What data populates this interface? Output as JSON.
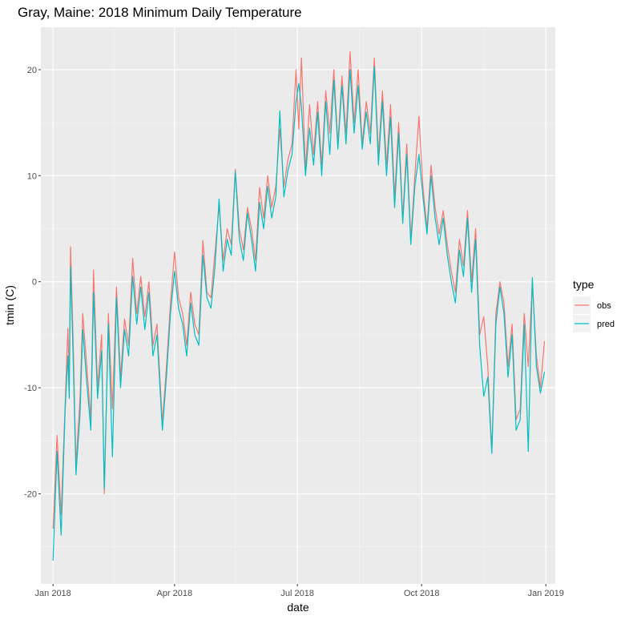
{
  "chart_data": {
    "type": "line",
    "title": "Gray, Maine: 2018 Minimum Daily Temperature",
    "xlabel": "date",
    "ylabel": "tmin (C)",
    "x_type": "date",
    "xlim": [
      "2017-12-23",
      "2019-01-08"
    ],
    "ylim": [
      -28.5,
      24
    ],
    "x_ticks": [
      {
        "date": "2018-01-01",
        "label": "Jan 2018"
      },
      {
        "date": "2018-04-01",
        "label": "Apr 2018"
      },
      {
        "date": "2018-07-01",
        "label": "Jul 2018"
      },
      {
        "date": "2018-10-01",
        "label": "Oct 2018"
      },
      {
        "date": "2019-01-01",
        "label": "Jan 2019"
      }
    ],
    "x_minor_ticks": [
      "2018-02-15",
      "2018-05-16",
      "2018-08-16",
      "2018-11-16"
    ],
    "y_ticks": [
      -20,
      -10,
      0,
      10,
      20
    ],
    "y_minor_ticks": [
      -25,
      -15,
      -5,
      5,
      15
    ],
    "grid": true,
    "legend": {
      "title": "type",
      "position": "right"
    },
    "series": [
      {
        "name": "obs",
        "color": "#F8766D",
        "points": [
          [
            "2018-01-01",
            -23.3
          ],
          [
            "2018-01-04",
            -14.5
          ],
          [
            "2018-01-07",
            -22.0
          ],
          [
            "2018-01-10",
            -11.5
          ],
          [
            "2018-01-12",
            -4.4
          ],
          [
            "2018-01-13",
            -9.0
          ],
          [
            "2018-01-14",
            3.3
          ],
          [
            "2018-01-16",
            -6.0
          ],
          [
            "2018-01-18",
            -17.2
          ],
          [
            "2018-01-21",
            -11.0
          ],
          [
            "2018-01-23",
            -3.0
          ],
          [
            "2018-01-26",
            -8.0
          ],
          [
            "2018-01-29",
            -13.0
          ],
          [
            "2018-01-31",
            1.1
          ],
          [
            "2018-02-03",
            -10.0
          ],
          [
            "2018-02-06",
            -5.0
          ],
          [
            "2018-02-08",
            -20.0
          ],
          [
            "2018-02-11",
            -3.0
          ],
          [
            "2018-02-14",
            -12.0
          ],
          [
            "2018-02-17",
            -0.5
          ],
          [
            "2018-02-20",
            -9.0
          ],
          [
            "2018-02-23",
            -3.5
          ],
          [
            "2018-02-26",
            -6.0
          ],
          [
            "2018-03-01",
            2.2
          ],
          [
            "2018-03-04",
            -3.0
          ],
          [
            "2018-03-07",
            0.5
          ],
          [
            "2018-03-10",
            -3.3
          ],
          [
            "2018-03-13",
            0.0
          ],
          [
            "2018-03-16",
            -6.0
          ],
          [
            "2018-03-19",
            -4.0
          ],
          [
            "2018-03-23",
            -13.3
          ],
          [
            "2018-03-26",
            -8.0
          ],
          [
            "2018-03-29",
            -2.0
          ],
          [
            "2018-04-01",
            2.8
          ],
          [
            "2018-04-04",
            -1.5
          ],
          [
            "2018-04-07",
            -3.0
          ],
          [
            "2018-04-10",
            -6.0
          ],
          [
            "2018-04-13",
            -1.0
          ],
          [
            "2018-04-16",
            -4.0
          ],
          [
            "2018-04-19",
            -5.0
          ],
          [
            "2018-04-22",
            3.9
          ],
          [
            "2018-04-25",
            -1.0
          ],
          [
            "2018-04-28",
            -1.5
          ],
          [
            "2018-05-01",
            2.8
          ],
          [
            "2018-05-04",
            7.2
          ],
          [
            "2018-05-07",
            2.0
          ],
          [
            "2018-05-10",
            5.0
          ],
          [
            "2018-05-13",
            3.5
          ],
          [
            "2018-05-16",
            10.6
          ],
          [
            "2018-05-19",
            5.0
          ],
          [
            "2018-05-22",
            3.0
          ],
          [
            "2018-05-25",
            7.0
          ],
          [
            "2018-05-28",
            5.0
          ],
          [
            "2018-05-31",
            2.0
          ],
          [
            "2018-06-03",
            8.9
          ],
          [
            "2018-06-06",
            6.0
          ],
          [
            "2018-06-09",
            10.0
          ],
          [
            "2018-06-12",
            7.0
          ],
          [
            "2018-06-15",
            9.0
          ],
          [
            "2018-06-18",
            14.4
          ],
          [
            "2018-06-21",
            9.0
          ],
          [
            "2018-06-24",
            11.5
          ],
          [
            "2018-06-27",
            13.0
          ],
          [
            "2018-06-30",
            20.0
          ],
          [
            "2018-07-02",
            14.4
          ],
          [
            "2018-07-04",
            21.1
          ],
          [
            "2018-07-07",
            10.5
          ],
          [
            "2018-07-10",
            16.7
          ],
          [
            "2018-07-13",
            12.0
          ],
          [
            "2018-07-16",
            17.0
          ],
          [
            "2018-07-19",
            11.0
          ],
          [
            "2018-07-22",
            18.0
          ],
          [
            "2018-07-25",
            14.0
          ],
          [
            "2018-07-28",
            20.0
          ],
          [
            "2018-07-31",
            13.0
          ],
          [
            "2018-08-03",
            19.4
          ],
          [
            "2018-08-06",
            14.0
          ],
          [
            "2018-08-09",
            21.7
          ],
          [
            "2018-08-12",
            15.0
          ],
          [
            "2018-08-15",
            20.0
          ],
          [
            "2018-08-18",
            13.0
          ],
          [
            "2018-08-21",
            17.0
          ],
          [
            "2018-08-24",
            14.0
          ],
          [
            "2018-08-27",
            21.1
          ],
          [
            "2018-08-30",
            12.0
          ],
          [
            "2018-09-02",
            18.0
          ],
          [
            "2018-09-05",
            11.0
          ],
          [
            "2018-09-08",
            16.7
          ],
          [
            "2018-09-11",
            8.0
          ],
          [
            "2018-09-14",
            15.0
          ],
          [
            "2018-09-17",
            6.0
          ],
          [
            "2018-09-20",
            13.0
          ],
          [
            "2018-09-23",
            4.0
          ],
          [
            "2018-09-26",
            10.0
          ],
          [
            "2018-09-29",
            15.6
          ],
          [
            "2018-10-02",
            8.9
          ],
          [
            "2018-10-05",
            5.0
          ],
          [
            "2018-10-08",
            11.0
          ],
          [
            "2018-10-11",
            7.0
          ],
          [
            "2018-10-14",
            4.5
          ],
          [
            "2018-10-17",
            6.7
          ],
          [
            "2018-10-20",
            3.5
          ],
          [
            "2018-10-23",
            1.0
          ],
          [
            "2018-10-26",
            -1.0
          ],
          [
            "2018-10-29",
            4.0
          ],
          [
            "2018-11-01",
            1.5
          ],
          [
            "2018-11-04",
            6.7
          ],
          [
            "2018-11-07",
            0.0
          ],
          [
            "2018-11-10",
            5.0
          ],
          [
            "2018-11-13",
            -5.0
          ],
          [
            "2018-11-16",
            -3.3
          ],
          [
            "2018-11-19",
            -8.0
          ],
          [
            "2018-11-22",
            -16.0
          ],
          [
            "2018-11-25",
            -3.0
          ],
          [
            "2018-11-28",
            0.0
          ],
          [
            "2018-12-01",
            -2.0
          ],
          [
            "2018-12-04",
            -8.0
          ],
          [
            "2018-12-07",
            -4.0
          ],
          [
            "2018-12-10",
            -13.0
          ],
          [
            "2018-12-13",
            -12.0
          ],
          [
            "2018-12-16",
            -3.0
          ],
          [
            "2018-12-19",
            -8.0
          ],
          [
            "2018-12-22",
            0.0
          ],
          [
            "2018-12-25",
            -7.0
          ],
          [
            "2018-12-28",
            -10.0
          ],
          [
            "2018-12-31",
            -5.6
          ]
        ]
      },
      {
        "name": "pred",
        "color": "#00BFC4",
        "points": [
          [
            "2018-01-01",
            -26.3
          ],
          [
            "2018-01-04",
            -16.0
          ],
          [
            "2018-01-07",
            -23.9
          ],
          [
            "2018-01-10",
            -12.0
          ],
          [
            "2018-01-12",
            -7.0
          ],
          [
            "2018-01-13",
            -11.0
          ],
          [
            "2018-01-14",
            1.4
          ],
          [
            "2018-01-16",
            -7.5
          ],
          [
            "2018-01-18",
            -18.2
          ],
          [
            "2018-01-21",
            -12.5
          ],
          [
            "2018-01-23",
            -4.5
          ],
          [
            "2018-01-26",
            -9.5
          ],
          [
            "2018-01-29",
            -14.0
          ],
          [
            "2018-01-31",
            -1.0
          ],
          [
            "2018-02-03",
            -11.0
          ],
          [
            "2018-02-06",
            -6.5
          ],
          [
            "2018-02-08",
            -19.5
          ],
          [
            "2018-02-11",
            -4.0
          ],
          [
            "2018-02-14",
            -16.5
          ],
          [
            "2018-02-17",
            -1.5
          ],
          [
            "2018-02-20",
            -10.0
          ],
          [
            "2018-02-23",
            -4.5
          ],
          [
            "2018-02-26",
            -7.0
          ],
          [
            "2018-03-01",
            0.5
          ],
          [
            "2018-03-04",
            -4.0
          ],
          [
            "2018-03-07",
            -0.5
          ],
          [
            "2018-03-10",
            -4.5
          ],
          [
            "2018-03-13",
            -1.0
          ],
          [
            "2018-03-16",
            -7.0
          ],
          [
            "2018-03-19",
            -5.0
          ],
          [
            "2018-03-23",
            -14.0
          ],
          [
            "2018-03-26",
            -9.0
          ],
          [
            "2018-03-29",
            -3.0
          ],
          [
            "2018-04-01",
            1.0
          ],
          [
            "2018-04-04",
            -2.5
          ],
          [
            "2018-04-07",
            -4.0
          ],
          [
            "2018-04-10",
            -7.0
          ],
          [
            "2018-04-13",
            -2.0
          ],
          [
            "2018-04-16",
            -5.0
          ],
          [
            "2018-04-19",
            -6.0
          ],
          [
            "2018-04-22",
            2.5
          ],
          [
            "2018-04-25",
            -1.5
          ],
          [
            "2018-04-28",
            -2.5
          ],
          [
            "2018-05-01",
            1.5
          ],
          [
            "2018-05-04",
            7.8
          ],
          [
            "2018-05-07",
            1.0
          ],
          [
            "2018-05-10",
            4.0
          ],
          [
            "2018-05-13",
            2.5
          ],
          [
            "2018-05-16",
            10.4
          ],
          [
            "2018-05-19",
            4.0
          ],
          [
            "2018-05-22",
            2.0
          ],
          [
            "2018-05-25",
            6.5
          ],
          [
            "2018-05-28",
            4.0
          ],
          [
            "2018-05-31",
            1.0
          ],
          [
            "2018-06-03",
            7.5
          ],
          [
            "2018-06-06",
            5.0
          ],
          [
            "2018-06-09",
            9.0
          ],
          [
            "2018-06-12",
            6.0
          ],
          [
            "2018-06-15",
            8.0
          ],
          [
            "2018-06-18",
            16.1
          ],
          [
            "2018-06-21",
            8.0
          ],
          [
            "2018-06-24",
            10.5
          ],
          [
            "2018-06-27",
            12.0
          ],
          [
            "2018-06-30",
            17.0
          ],
          [
            "2018-07-02",
            18.7
          ],
          [
            "2018-07-04",
            16.5
          ],
          [
            "2018-07-07",
            10.0
          ],
          [
            "2018-07-10",
            14.5
          ],
          [
            "2018-07-13",
            11.0
          ],
          [
            "2018-07-16",
            16.0
          ],
          [
            "2018-07-19",
            10.0
          ],
          [
            "2018-07-22",
            17.0
          ],
          [
            "2018-07-25",
            12.0
          ],
          [
            "2018-07-28",
            19.0
          ],
          [
            "2018-07-31",
            12.5
          ],
          [
            "2018-08-03",
            18.5
          ],
          [
            "2018-08-06",
            13.0
          ],
          [
            "2018-08-09",
            20.0
          ],
          [
            "2018-08-12",
            14.0
          ],
          [
            "2018-08-15",
            18.5
          ],
          [
            "2018-08-18",
            12.5
          ],
          [
            "2018-08-21",
            16.0
          ],
          [
            "2018-08-24",
            13.0
          ],
          [
            "2018-08-27",
            20.3
          ],
          [
            "2018-08-30",
            11.0
          ],
          [
            "2018-09-02",
            17.0
          ],
          [
            "2018-09-05",
            10.0
          ],
          [
            "2018-09-08",
            15.5
          ],
          [
            "2018-09-11",
            7.0
          ],
          [
            "2018-09-14",
            14.0
          ],
          [
            "2018-09-17",
            5.5
          ],
          [
            "2018-09-20",
            12.0
          ],
          [
            "2018-09-23",
            3.5
          ],
          [
            "2018-09-26",
            9.0
          ],
          [
            "2018-09-29",
            12.0
          ],
          [
            "2018-10-02",
            8.0
          ],
          [
            "2018-10-05",
            4.5
          ],
          [
            "2018-10-08",
            10.0
          ],
          [
            "2018-10-11",
            6.0
          ],
          [
            "2018-10-14",
            3.5
          ],
          [
            "2018-10-17",
            6.0
          ],
          [
            "2018-10-20",
            2.5
          ],
          [
            "2018-10-23",
            0.0
          ],
          [
            "2018-10-26",
            -2.0
          ],
          [
            "2018-10-29",
            3.0
          ],
          [
            "2018-11-01",
            0.5
          ],
          [
            "2018-11-04",
            6.0
          ],
          [
            "2018-11-07",
            -1.0
          ],
          [
            "2018-11-10",
            4.0
          ],
          [
            "2018-11-13",
            -6.0
          ],
          [
            "2018-11-16",
            -10.8
          ],
          [
            "2018-11-19",
            -9.0
          ],
          [
            "2018-11-22",
            -16.2
          ],
          [
            "2018-11-25",
            -4.0
          ],
          [
            "2018-11-28",
            -0.5
          ],
          [
            "2018-12-01",
            -3.0
          ],
          [
            "2018-12-04",
            -9.0
          ],
          [
            "2018-12-07",
            -5.0
          ],
          [
            "2018-12-10",
            -14.0
          ],
          [
            "2018-12-13",
            -13.0
          ],
          [
            "2018-12-16",
            -4.0
          ],
          [
            "2018-12-19",
            -16.0
          ],
          [
            "2018-12-22",
            0.4
          ],
          [
            "2018-12-25",
            -8.0
          ],
          [
            "2018-12-28",
            -10.5
          ],
          [
            "2018-12-31",
            -8.5
          ]
        ]
      }
    ]
  }
}
